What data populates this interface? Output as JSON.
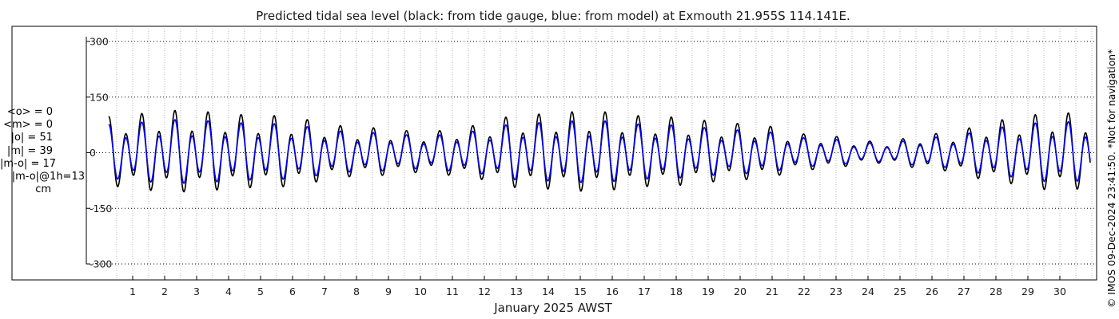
{
  "chart_data": {
    "type": "line",
    "title": "Predicted tidal sea level (black: from tide gauge, blue: from model) at Exmouth 21.955S 114.141E.",
    "xlabel": "January 2025 AWST",
    "ylabel": "",
    "x_unit": "day of January 2025",
    "xlim": [
      0.2,
      31.0
    ],
    "ylim": [
      -320,
      330
    ],
    "yticks": [
      300,
      150,
      0,
      -150,
      -300
    ],
    "xtick_labels": [
      "1",
      "2",
      "3",
      "4",
      "5",
      "6",
      "7",
      "8",
      "9",
      "10",
      "11",
      "12",
      "13",
      "14",
      "15",
      "16",
      "17",
      "18",
      "19",
      "20",
      "21",
      "22",
      "23",
      "24",
      "25",
      "26",
      "27",
      "28",
      "29",
      "30"
    ],
    "grid": true,
    "series": [
      {
        "color": "#000000",
        "amplitude_envelope": [
          {
            "day": 0.3,
            "amp": 90
          },
          {
            "day": 2.3,
            "amp": 105
          },
          {
            "day": 5.3,
            "amp": 92
          },
          {
            "day": 8.3,
            "amp": 62
          },
          {
            "day": 10.3,
            "amp": 52
          },
          {
            "day": 11.3,
            "amp": 65
          },
          {
            "day": 13.3,
            "amp": 95
          },
          {
            "day": 15.3,
            "amp": 103
          },
          {
            "day": 17.3,
            "amp": 90
          },
          {
            "day": 20.3,
            "amp": 72
          },
          {
            "day": 22.3,
            "amp": 45
          },
          {
            "day": 24.3,
            "amp": 28
          },
          {
            "day": 26.3,
            "amp": 48
          },
          {
            "day": 28.3,
            "amp": 82
          },
          {
            "day": 29.8,
            "amp": 100
          },
          {
            "day": 31.0,
            "amp": 96
          }
        ],
        "period_hours": 12.42,
        "peak_day": 0.26
      },
      {
        "color": "#0000ff",
        "amplitude_envelope": [
          {
            "day": 0.3,
            "amp": 70
          },
          {
            "day": 2.3,
            "amp": 82
          },
          {
            "day": 5.3,
            "amp": 72
          },
          {
            "day": 8.3,
            "amp": 50
          },
          {
            "day": 10.3,
            "amp": 42
          },
          {
            "day": 11.3,
            "amp": 52
          },
          {
            "day": 13.3,
            "amp": 74
          },
          {
            "day": 15.3,
            "amp": 80
          },
          {
            "day": 17.3,
            "amp": 70
          },
          {
            "day": 20.3,
            "amp": 56
          },
          {
            "day": 22.3,
            "amp": 36
          },
          {
            "day": 24.3,
            "amp": 24
          },
          {
            "day": 26.3,
            "amp": 39
          },
          {
            "day": 28.3,
            "amp": 64
          },
          {
            "day": 29.8,
            "amp": 78
          },
          {
            "day": 31.0,
            "amp": 75
          }
        ],
        "period_hours": 12.42,
        "peak_day": 0.26
      }
    ]
  },
  "stats": {
    "mean_obs": "<o> = 0",
    "mean_model": "<m> = 0",
    "abs_obs": "|o| = 51",
    "abs_model": "|m| = 39",
    "abs_diff": "|m-o| = 17",
    "abs_diff_1h": "|m-o|@1h=13",
    "unit": "cm"
  },
  "side_note": "© IMOS 09-Dec-2024 23:41:50. *Not for navigation*"
}
